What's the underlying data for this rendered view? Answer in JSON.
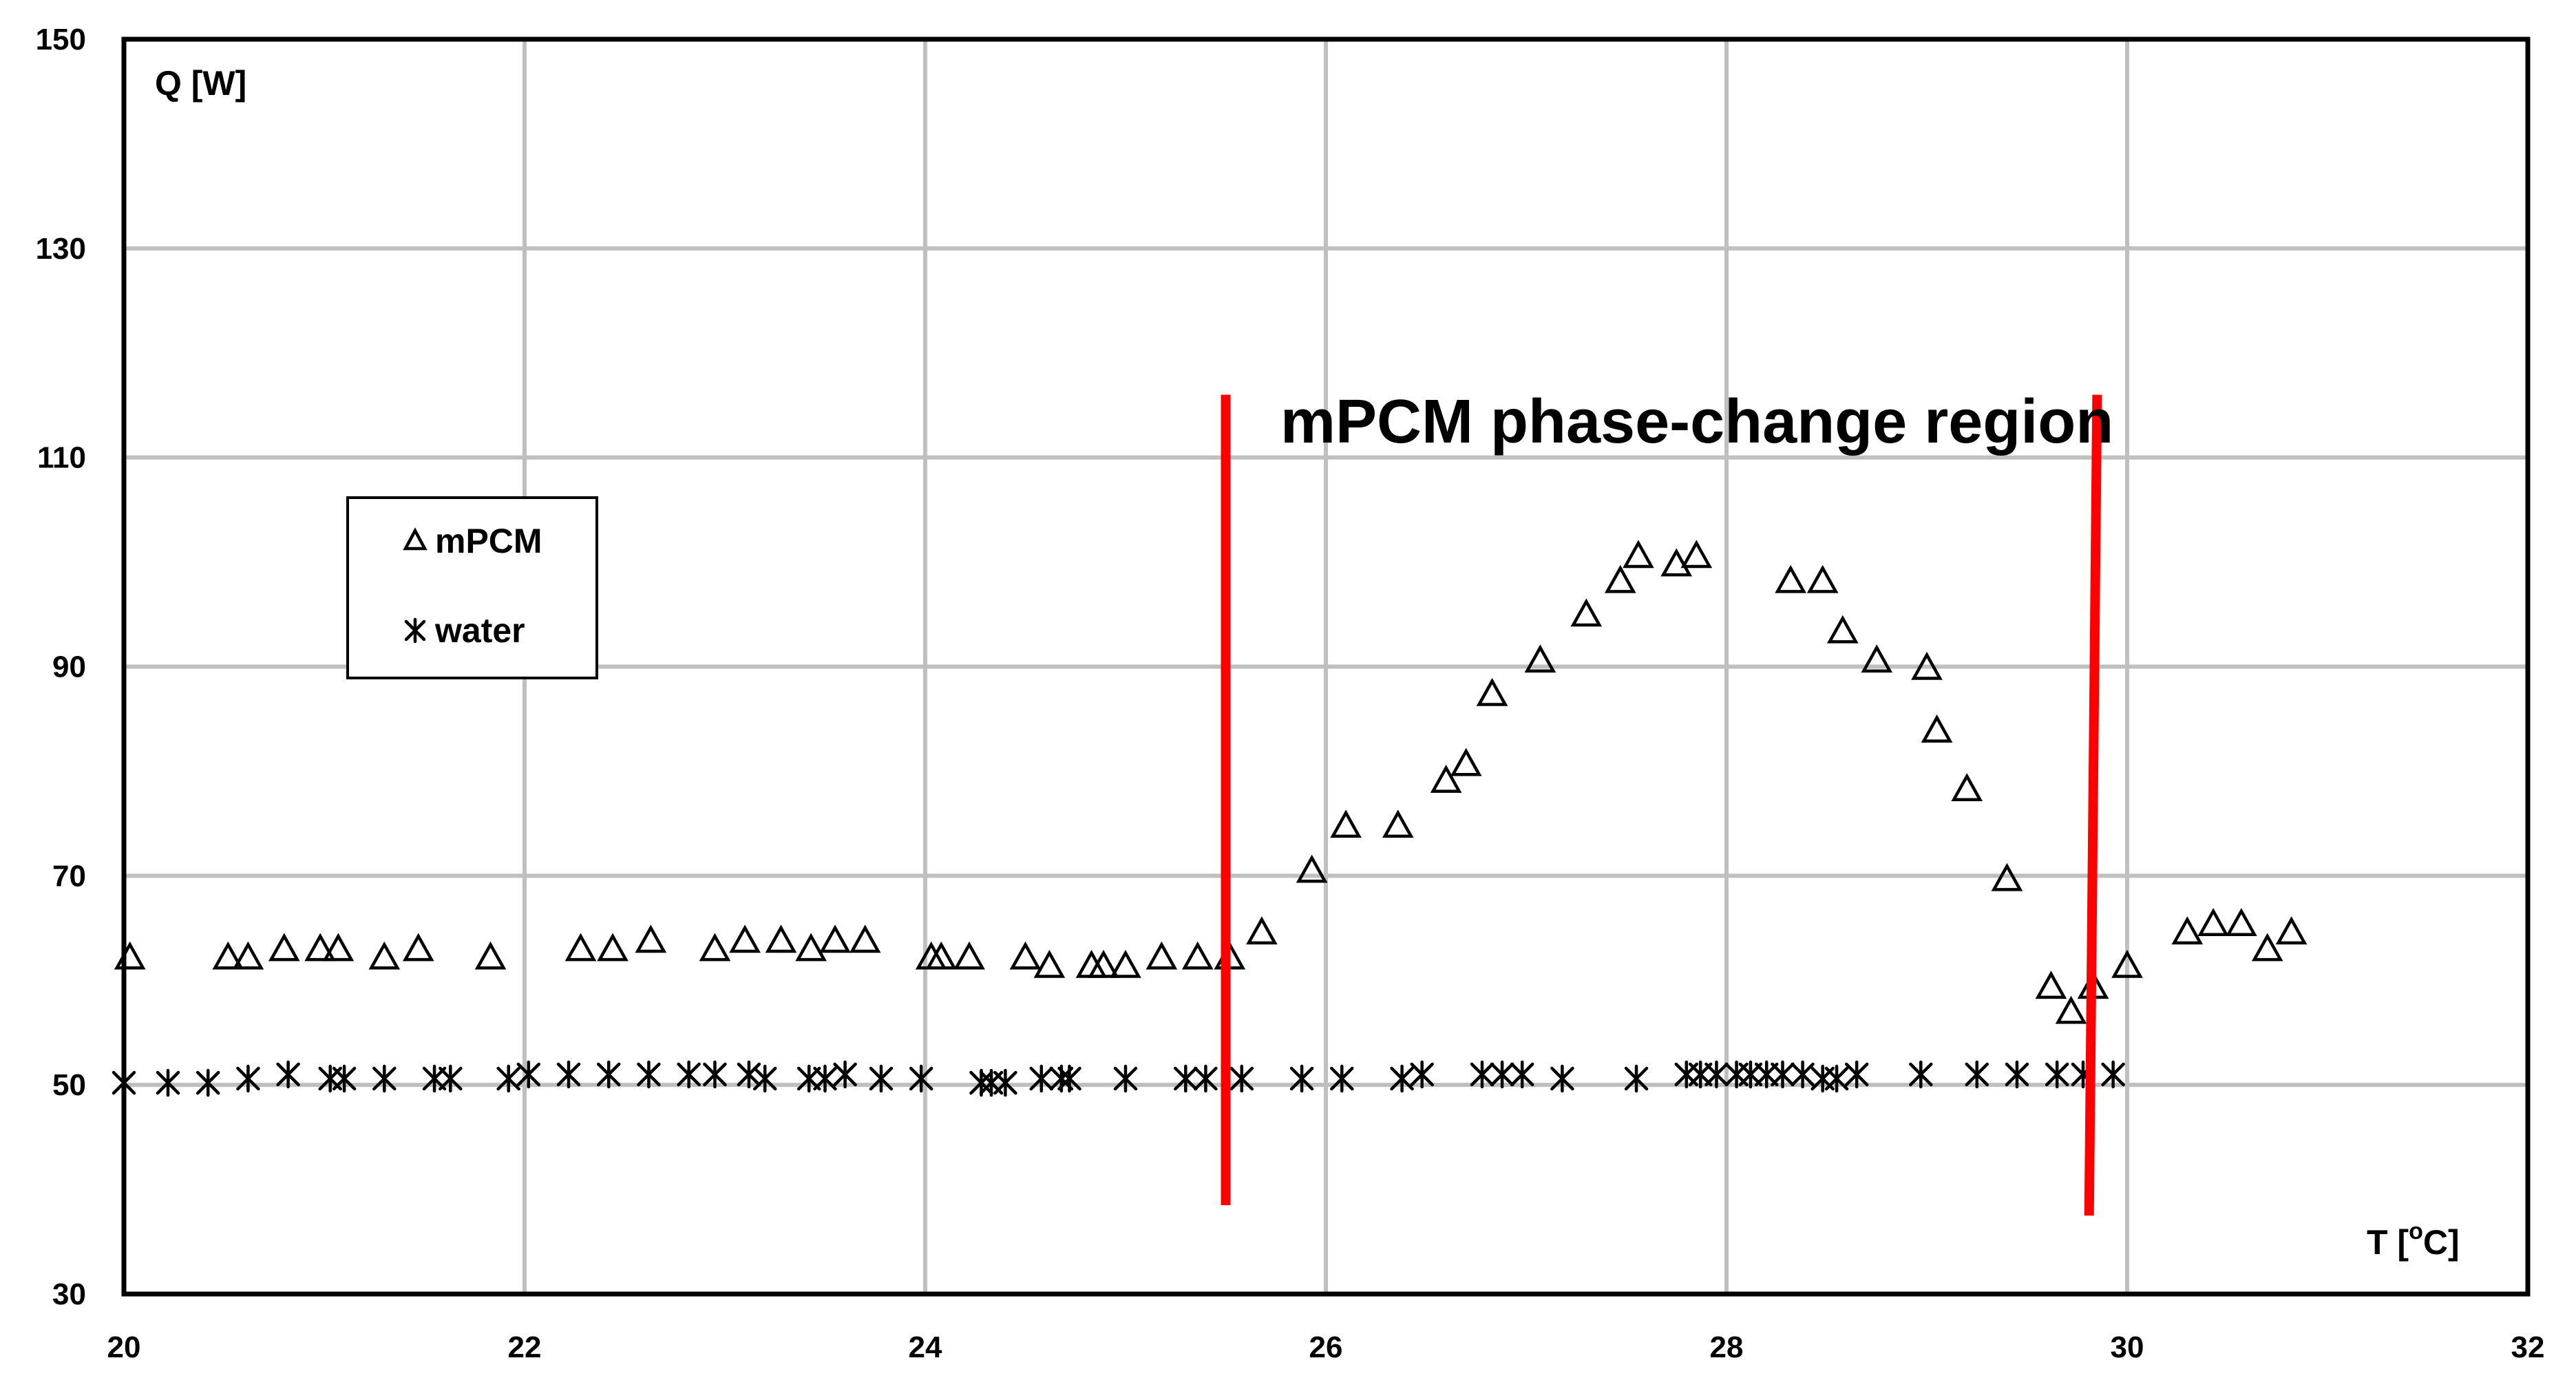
{
  "chart_data": {
    "type": "scatter",
    "xlabel_prefix": "T [",
    "xlabel_sup": "o",
    "xlabel_suffix": "C]",
    "ylabel": "Q [W]",
    "xlim": [
      20,
      32
    ],
    "ylim": [
      30,
      150
    ],
    "x_ticks": [
      20,
      22,
      24,
      26,
      28,
      30,
      32
    ],
    "y_ticks": [
      30,
      50,
      70,
      90,
      110,
      130,
      150
    ],
    "grid": true,
    "legend_position": "upper-left",
    "series": [
      {
        "name": "mPCM",
        "marker": "triangle",
        "color": "#000000",
        "points": [
          [
            20.03,
            62.3
          ],
          [
            20.52,
            62.3
          ],
          [
            20.62,
            62.3
          ],
          [
            20.8,
            63.1
          ],
          [
            20.98,
            63.1
          ],
          [
            21.07,
            63.1
          ],
          [
            21.3,
            62.3
          ],
          [
            21.47,
            63.1
          ],
          [
            21.83,
            62.3
          ],
          [
            22.28,
            63.1
          ],
          [
            22.44,
            63.1
          ],
          [
            22.63,
            63.9
          ],
          [
            22.95,
            63.1
          ],
          [
            23.1,
            63.9
          ],
          [
            23.28,
            63.9
          ],
          [
            23.43,
            63.1
          ],
          [
            23.55,
            63.9
          ],
          [
            23.7,
            63.9
          ],
          [
            24.03,
            62.3
          ],
          [
            24.08,
            62.3
          ],
          [
            24.22,
            62.3
          ],
          [
            24.5,
            62.3
          ],
          [
            24.62,
            61.5
          ],
          [
            24.83,
            61.5
          ],
          [
            24.89,
            61.5
          ],
          [
            25.0,
            61.5
          ],
          [
            25.18,
            62.3
          ],
          [
            25.36,
            62.3
          ],
          [
            25.52,
            62.3
          ],
          [
            25.68,
            64.7
          ],
          [
            25.93,
            70.6
          ],
          [
            26.1,
            74.9
          ],
          [
            26.36,
            74.9
          ],
          [
            26.6,
            79.2
          ],
          [
            26.7,
            80.8
          ],
          [
            26.83,
            87.5
          ],
          [
            27.07,
            90.7
          ],
          [
            27.3,
            95.1
          ],
          [
            27.47,
            98.3
          ],
          [
            27.56,
            100.7
          ],
          [
            27.75,
            99.9
          ],
          [
            27.85,
            100.7
          ],
          [
            28.32,
            98.3
          ],
          [
            28.48,
            98.3
          ],
          [
            28.58,
            93.5
          ],
          [
            28.75,
            90.7
          ],
          [
            29.0,
            90.0
          ],
          [
            29.05,
            84.0
          ],
          [
            29.2,
            78.4
          ],
          [
            29.4,
            69.8
          ],
          [
            29.62,
            59.5
          ],
          [
            29.72,
            57.1
          ],
          [
            29.83,
            59.5
          ],
          [
            30.0,
            61.5
          ],
          [
            30.3,
            64.7
          ],
          [
            30.43,
            65.5
          ],
          [
            30.57,
            65.5
          ],
          [
            30.7,
            63.1
          ],
          [
            30.82,
            64.7
          ]
        ]
      },
      {
        "name": "water",
        "marker": "asterisk",
        "color": "#000000",
        "points": [
          [
            20.0,
            50.2
          ],
          [
            20.22,
            50.2
          ],
          [
            20.42,
            50.2
          ],
          [
            20.62,
            50.6
          ],
          [
            20.82,
            51.0
          ],
          [
            21.03,
            50.6
          ],
          [
            21.1,
            50.6
          ],
          [
            21.3,
            50.6
          ],
          [
            21.55,
            50.6
          ],
          [
            21.63,
            50.6
          ],
          [
            21.92,
            50.6
          ],
          [
            22.02,
            51.0
          ],
          [
            22.22,
            51.0
          ],
          [
            22.42,
            51.0
          ],
          [
            22.62,
            51.0
          ],
          [
            22.82,
            51.0
          ],
          [
            22.95,
            51.0
          ],
          [
            23.12,
            51.0
          ],
          [
            23.2,
            50.6
          ],
          [
            23.42,
            50.6
          ],
          [
            23.5,
            50.6
          ],
          [
            23.6,
            51.0
          ],
          [
            23.78,
            50.6
          ],
          [
            23.98,
            50.6
          ],
          [
            24.28,
            50.2
          ],
          [
            24.33,
            50.2
          ],
          [
            24.4,
            50.2
          ],
          [
            24.58,
            50.6
          ],
          [
            24.68,
            50.6
          ],
          [
            24.72,
            50.6
          ],
          [
            25.0,
            50.6
          ],
          [
            25.3,
            50.6
          ],
          [
            25.4,
            50.6
          ],
          [
            25.58,
            50.6
          ],
          [
            25.88,
            50.6
          ],
          [
            26.08,
            50.6
          ],
          [
            26.38,
            50.6
          ],
          [
            26.48,
            51.0
          ],
          [
            26.78,
            51.0
          ],
          [
            26.88,
            51.0
          ],
          [
            26.98,
            51.0
          ],
          [
            27.18,
            50.6
          ],
          [
            27.55,
            50.6
          ],
          [
            27.8,
            51.0
          ],
          [
            27.87,
            51.0
          ],
          [
            27.95,
            51.0
          ],
          [
            28.05,
            51.0
          ],
          [
            28.12,
            51.0
          ],
          [
            28.2,
            51.0
          ],
          [
            28.28,
            51.0
          ],
          [
            28.38,
            51.0
          ],
          [
            28.48,
            50.6
          ],
          [
            28.55,
            50.6
          ],
          [
            28.65,
            51.0
          ],
          [
            28.97,
            51.0
          ],
          [
            29.25,
            51.0
          ],
          [
            29.45,
            51.0
          ],
          [
            29.65,
            51.0
          ],
          [
            29.78,
            51.0
          ],
          [
            29.93,
            51.0
          ]
        ]
      }
    ],
    "annotations": {
      "region_label": "mPCM phase-change region",
      "phase_lines": [
        {
          "x_top": 25.5,
          "x_bottom": 25.5,
          "y_top": 116,
          "y_bottom": 38.5
        },
        {
          "x_top": 29.85,
          "x_bottom": 29.81,
          "y_top": 116,
          "y_bottom": 37.5
        }
      ],
      "phase_line_color": "#ff0000"
    }
  }
}
